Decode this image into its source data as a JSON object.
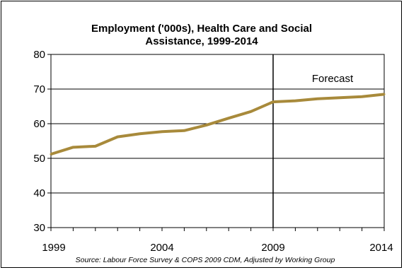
{
  "chart_data": {
    "type": "line",
    "title_line1": "Employment ('000s), Health Care and Social",
    "title_line2": "Assistance,  1999-2014",
    "x_tick_labels": [
      "1999",
      "2004",
      "2009",
      "2014"
    ],
    "y_tick_labels": [
      "30",
      "40",
      "50",
      "60",
      "70",
      "80"
    ],
    "ylim": [
      30,
      80
    ],
    "xlim": [
      1999,
      2014
    ],
    "grid": "horizontal",
    "x": [
      1999,
      2000,
      2001,
      2002,
      2003,
      2004,
      2005,
      2006,
      2007,
      2008,
      2009,
      2010,
      2011,
      2012,
      2013,
      2014
    ],
    "series": [
      {
        "values": [
          51.2,
          53.2,
          53.5,
          56.2,
          57.1,
          57.7,
          58.0,
          59.6,
          61.6,
          63.5,
          66.3,
          66.6,
          67.2,
          67.5,
          67.8,
          68.5
        ],
        "color": "#A88A3B"
      }
    ],
    "annotation": {
      "text": "Forecast",
      "divider_x": 2009
    },
    "source": "Source:  Labour  Force  Survey  &  COPS  2009  CDM,  Adjusted   by  Working  Group"
  }
}
